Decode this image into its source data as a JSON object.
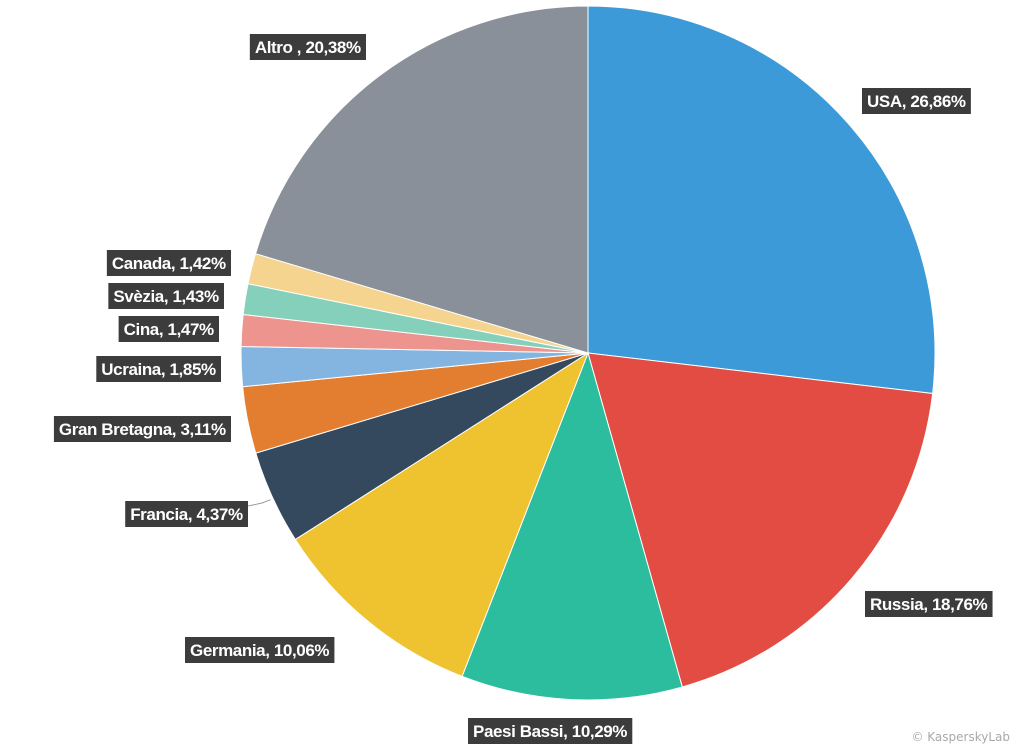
{
  "chart_data": {
    "type": "pie",
    "title": "",
    "start_angle_deg": 0,
    "direction": "clockwise",
    "slices": [
      {
        "label": "USA, 26,86%",
        "value": 26.86,
        "color": "#3c9ad8"
      },
      {
        "label": "Russia, 18,76%",
        "value": 18.76,
        "color": "#e34c42"
      },
      {
        "label": "Paesi Bassi, 10,29%",
        "value": 10.29,
        "color": "#2bbd9d"
      },
      {
        "label": "Germania, 10,06%",
        "value": 10.06,
        "color": "#efc22f"
      },
      {
        "label": "Francia, 4,37%",
        "value": 4.37,
        "color": "#34495e"
      },
      {
        "label": "Gran Bretagna, 3,11%",
        "value": 3.11,
        "color": "#e37e30"
      },
      {
        "label": "Ucraina, 1,85%",
        "value": 1.85,
        "color": "#84b5e0"
      },
      {
        "label": "Cina, 1,47%",
        "value": 1.47,
        "color": "#ec948d"
      },
      {
        "label": "Svèzia, 1,43%",
        "value": 1.43,
        "color": "#85d0bb"
      },
      {
        "label": "Canada, 1,42%",
        "value": 1.42,
        "color": "#f4d48e"
      },
      {
        "label": "Altro , 20,38%",
        "value": 20.38,
        "color": "#8a9099"
      }
    ]
  },
  "footer": {
    "credit": "© KasperskyLab"
  }
}
